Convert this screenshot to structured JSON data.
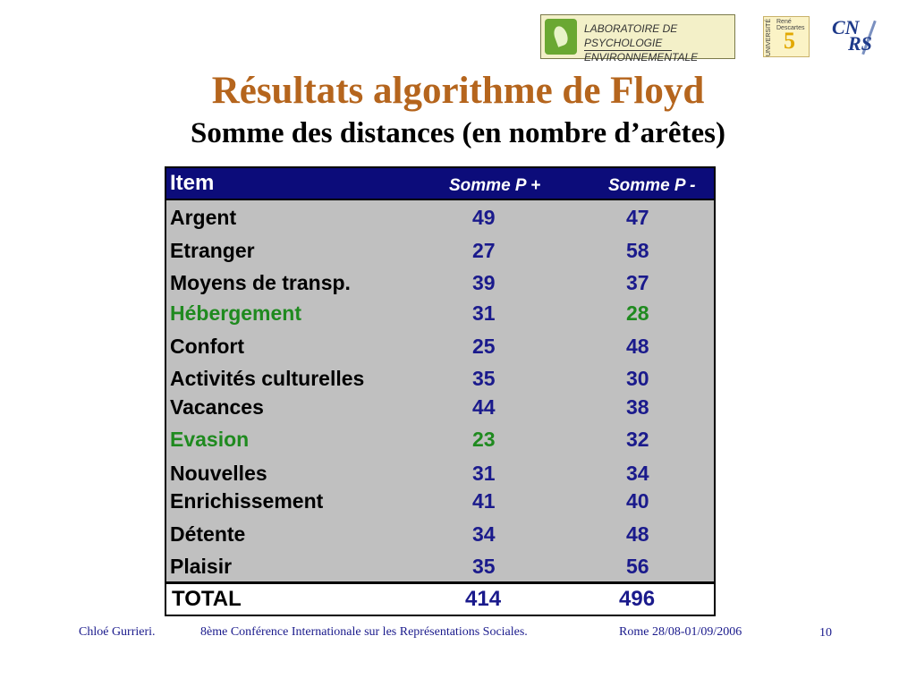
{
  "logos": {
    "lab_line1": "LABORATOIRE DE PSYCHOLOGIE",
    "lab_line2": "ENVIRONNEMENTALE",
    "univ_vertical": "UNIVERSITÉ",
    "univ_name": "René Descartes",
    "univ_number": "5",
    "cnrs_a": "CN",
    "cnrs_b": "RS"
  },
  "slide": {
    "title": "Résultats algorithme de Floyd",
    "subtitle": "Somme des distances (en nombre d’arêtes)"
  },
  "table": {
    "headers": {
      "item": "Item",
      "plus": "Somme P +",
      "minus": "Somme P -"
    },
    "rows": [
      {
        "item": "Argent",
        "plus": "49",
        "minus": "47"
      },
      {
        "item": "Etranger",
        "plus": "27",
        "minus": "58"
      },
      {
        "item": "Moyens de transp.",
        "plus": "39",
        "minus": "37"
      },
      {
        "item": "Hébergement",
        "plus": "31",
        "minus": "28"
      },
      {
        "item": "Confort",
        "plus": "25",
        "minus": "48"
      },
      {
        "item": "Activités culturelles",
        "plus": "35",
        "minus": "30"
      },
      {
        "item": "Vacances",
        "plus": "44",
        "minus": "38"
      },
      {
        "item": "Evasion",
        "plus": "23",
        "minus": "32"
      },
      {
        "item": "Nouvelles",
        "plus": "31",
        "minus": "34"
      },
      {
        "item": "Enrichissement",
        "plus": "41",
        "minus": "40"
      },
      {
        "item": "Détente",
        "plus": "34",
        "minus": "48"
      },
      {
        "item": "Plaisir",
        "plus": "35",
        "minus": "56"
      }
    ],
    "total": {
      "label": "TOTAL",
      "plus": "414",
      "minus": "496"
    },
    "colors": {
      "header_bg": "#0c0c7a",
      "body_bg": "#c0c0c0",
      "value": "#1a1a8c",
      "highlight": "#1f8a1f"
    }
  },
  "footer": {
    "author": "Chloé Gurrieri.",
    "conference": "8ème Conférence Internationale sur les Représentations Sociales.",
    "place_date": "Rome 28/08-01/09/2006",
    "page": "10"
  }
}
